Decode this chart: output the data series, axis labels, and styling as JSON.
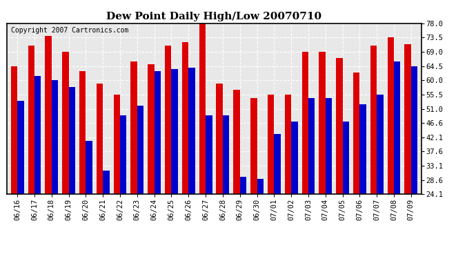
{
  "title": "Dew Point Daily High/Low 20070710",
  "copyright": "Copyright 2007 Cartronics.com",
  "categories": [
    "06/16",
    "06/17",
    "06/18",
    "06/19",
    "06/20",
    "06/21",
    "06/22",
    "06/23",
    "06/24",
    "06/25",
    "06/26",
    "06/27",
    "06/28",
    "06/29",
    "06/30",
    "07/01",
    "07/02",
    "07/03",
    "07/04",
    "07/05",
    "07/06",
    "07/07",
    "07/08",
    "07/09"
  ],
  "highs": [
    64.5,
    71.0,
    74.0,
    69.0,
    63.0,
    59.0,
    55.5,
    66.0,
    65.0,
    71.0,
    72.0,
    78.0,
    59.0,
    57.0,
    54.5,
    55.5,
    55.5,
    69.0,
    69.0,
    67.0,
    62.5,
    71.0,
    73.5,
    71.5
  ],
  "lows": [
    53.5,
    61.5,
    60.0,
    58.0,
    41.0,
    31.5,
    49.0,
    52.0,
    63.0,
    63.5,
    64.0,
    49.0,
    49.0,
    29.5,
    29.0,
    43.0,
    47.0,
    54.5,
    54.5,
    47.0,
    52.5,
    55.5,
    66.0,
    64.5
  ],
  "high_color": "#dd0000",
  "low_color": "#0000cc",
  "bg_color": "#ffffff",
  "plot_bg_color": "#e8e8e8",
  "grid_color": "#ffffff",
  "ylim_min": 24.1,
  "ylim_max": 78.0,
  "yticks": [
    24.1,
    28.6,
    33.1,
    37.6,
    42.1,
    46.6,
    51.0,
    55.5,
    60.0,
    64.5,
    69.0,
    73.5,
    78.0
  ],
  "title_fontsize": 11,
  "tick_fontsize": 7.5,
  "copyright_fontsize": 7
}
